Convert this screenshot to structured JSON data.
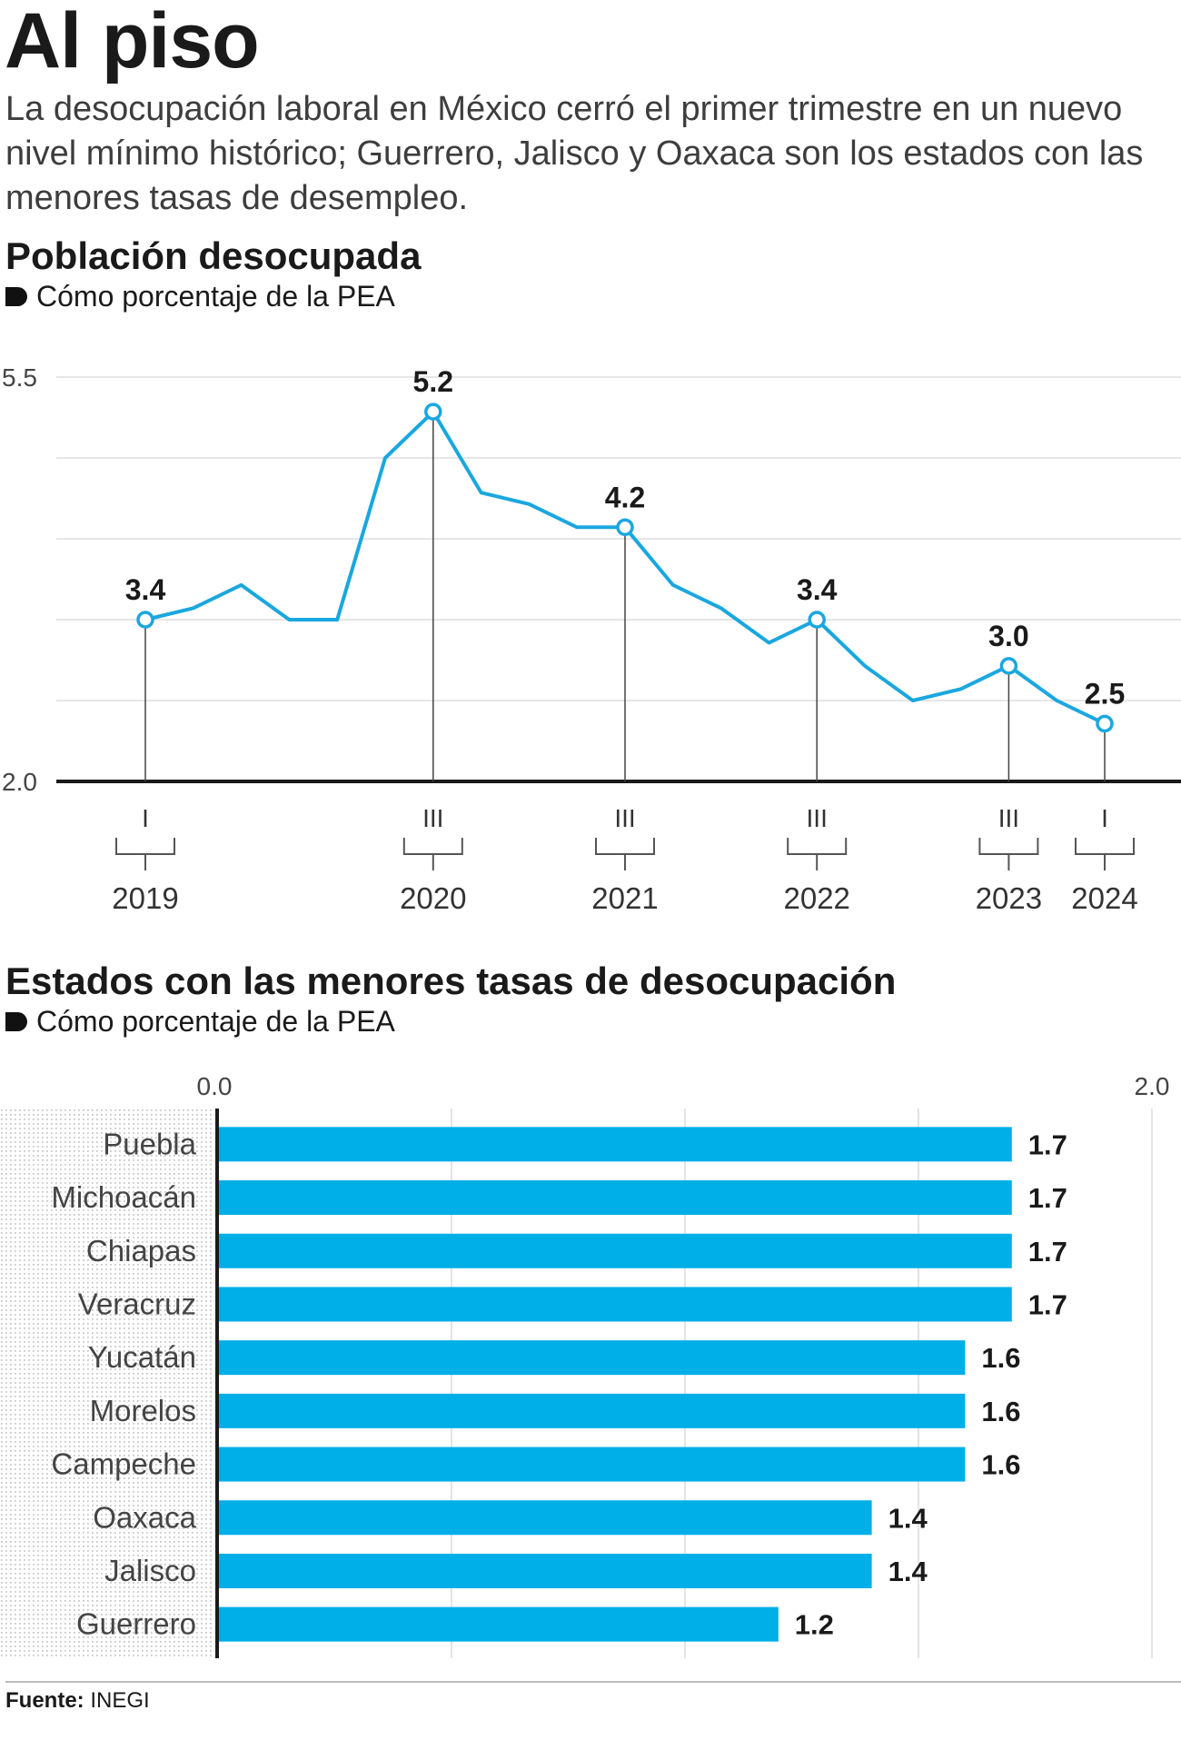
{
  "header": {
    "title": "Al piso",
    "subtitle": "La desocupación laboral en México cerró el primer trimestre en un nuevo nivel mínimo histórico; Guerrero, Jalisco y Oaxaca son los estados con las menores tasas de desempleo."
  },
  "line_section": {
    "title": "Población desocupada",
    "unit": "Cómo porcentaje de la PEA"
  },
  "bar_section": {
    "title": "Estados con las menores tasas de desocupación",
    "unit": "Cómo porcentaje de la PEA"
  },
  "footer": {
    "source_label": "Fuente:",
    "source_value": "INEGI"
  },
  "colors": {
    "accent": "#1aa7df",
    "bar": "#00aee8",
    "text": "#1a1a1a",
    "grid": "#dddddd"
  },
  "chart_data": [
    {
      "type": "line",
      "ylim": [
        2.0,
        5.5
      ],
      "y_tick_labels": [
        "5.5",
        "2.0"
      ],
      "x": [
        "2019-I",
        "2019-II",
        "2019-III",
        "2019-IV",
        "2020-I",
        "2020-II",
        "2020-III",
        "2020-IV",
        "2021-I",
        "2021-II",
        "2021-III",
        "2021-IV",
        "2022-I",
        "2022-II",
        "2022-III",
        "2022-IV",
        "2023-I",
        "2023-II",
        "2023-III",
        "2023-IV",
        "2024-I"
      ],
      "series": [
        {
          "values": [
            3.4,
            3.5,
            3.7,
            3.4,
            3.4,
            4.8,
            5.2,
            4.5,
            4.4,
            4.2,
            4.2,
            3.7,
            3.5,
            3.2,
            3.4,
            3.0,
            2.7,
            2.8,
            3.0,
            2.7,
            2.5
          ]
        }
      ],
      "highlighted": [
        {
          "x": "2019-I",
          "value_label": "3.4",
          "quarter": "I",
          "year": "2019"
        },
        {
          "x": "2020-III",
          "value_label": "5.2",
          "quarter": "III",
          "year": "2020"
        },
        {
          "x": "2021-III",
          "value_label": "4.2",
          "quarter": "III",
          "year": "2021"
        },
        {
          "x": "2022-III",
          "value_label": "3.4",
          "quarter": "III",
          "year": "2022"
        },
        {
          "x": "2023-III",
          "value_label": "3.0",
          "quarter": "III",
          "year": "2023"
        },
        {
          "x": "2024-I",
          "value_label": "2.5",
          "quarter": "I",
          "year": "2024"
        }
      ],
      "grid": true
    },
    {
      "type": "bar",
      "orientation": "horizontal",
      "xlim": [
        0.0,
        2.0
      ],
      "x_tick_labels": [
        "0.0",
        "2.0"
      ],
      "categories": [
        "Puebla",
        "Michoacán",
        "Chiapas",
        "Veracruz",
        "Yucatán",
        "Morelos",
        "Campeche",
        "Oaxaca",
        "Jalisco",
        "Guerrero"
      ],
      "values": [
        1.7,
        1.7,
        1.7,
        1.7,
        1.6,
        1.6,
        1.6,
        1.4,
        1.4,
        1.2
      ],
      "value_labels": [
        "1.7",
        "1.7",
        "1.7",
        "1.7",
        "1.6",
        "1.6",
        "1.6",
        "1.4",
        "1.4",
        "1.2"
      ],
      "grid": true
    }
  ]
}
